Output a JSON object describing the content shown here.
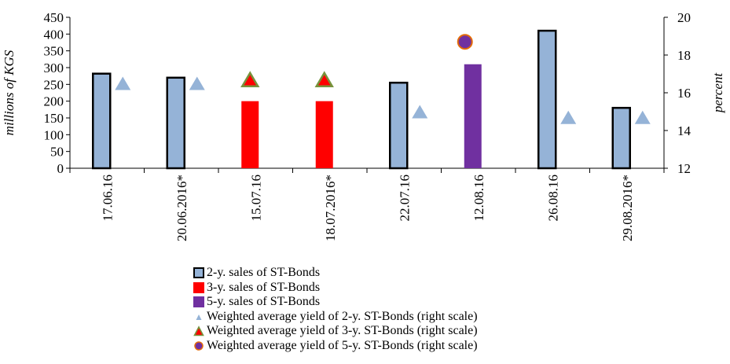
{
  "chart_data": {
    "type": "bar",
    "categories": [
      "17.06.16",
      "20.06.2016*",
      "15.07.16",
      "18.07.2016*",
      "22.07.16",
      "12.08.16",
      "26.08.16",
      "29.08.2016*"
    ],
    "ylabel": "millions of KGS",
    "y2label": "percent",
    "ylim": [
      0,
      450
    ],
    "y2lim": [
      12,
      20
    ],
    "yticks": [
      0,
      50,
      100,
      150,
      200,
      250,
      300,
      350,
      400,
      450
    ],
    "y2ticks": [
      12,
      14,
      16,
      18,
      20
    ],
    "yticks_labels": [
      "0",
      "50",
      "100",
      "150",
      "200",
      "250",
      "300",
      "350",
      "400",
      "450"
    ],
    "y2ticks_labels": [
      "12",
      "14",
      "16",
      "18",
      "20"
    ],
    "legend_position": "bottom",
    "series": [
      {
        "name": "2-y. sales of ST-Bonds",
        "kind": "bar",
        "axis": "left",
        "color": "#95B3D7",
        "edge": "#000000",
        "values": [
          282,
          270,
          null,
          null,
          255,
          null,
          410,
          180
        ]
      },
      {
        "name": "3-y. sales of ST-Bonds",
        "kind": "bar",
        "axis": "left",
        "color": "#FF0000",
        "edge": "none",
        "values": [
          null,
          null,
          200,
          200,
          null,
          null,
          null,
          null
        ]
      },
      {
        "name": "5-y. sales of ST-Bonds",
        "kind": "bar",
        "axis": "left",
        "color": "#7030A0",
        "edge": "none",
        "values": [
          null,
          null,
          null,
          null,
          null,
          310,
          null,
          null
        ]
      },
      {
        "name": "Weighted average yield of 2-y. ST-Bonds (right scale)",
        "kind": "marker",
        "marker": "triangle",
        "axis": "right",
        "color": "#95B3D7",
        "edge": "none",
        "values": [
          16.5,
          16.5,
          null,
          null,
          15.0,
          null,
          14.7,
          14.7
        ]
      },
      {
        "name": "Weighted average yield of 3-y. ST-Bonds (right scale)",
        "kind": "marker",
        "marker": "triangle",
        "axis": "right",
        "color": "#FF0000",
        "edge": "#77933C",
        "values": [
          null,
          null,
          16.7,
          16.7,
          null,
          null,
          null,
          null
        ]
      },
      {
        "name": "Weighted average yield of 5-y. ST-Bonds (right scale)",
        "kind": "marker",
        "marker": "circle",
        "axis": "right",
        "color": "#7030A0",
        "edge": "#E46C0A",
        "values": [
          null,
          null,
          null,
          null,
          null,
          18.7,
          null,
          null
        ]
      }
    ]
  }
}
